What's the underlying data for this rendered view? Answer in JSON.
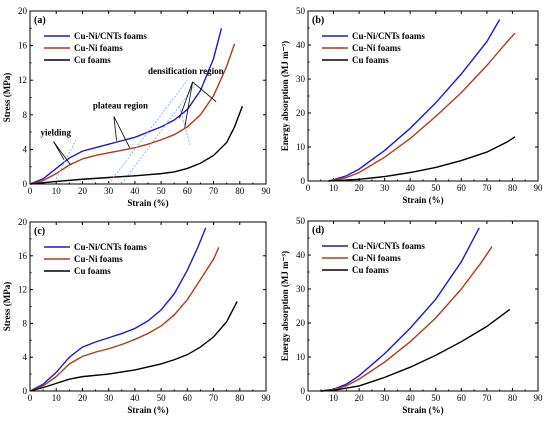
{
  "colors": {
    "cu_ni_cnts": "#1a1ad6",
    "cu_ni": "#b23a1a",
    "cu": "#000000",
    "guide": "#7fb2ff"
  },
  "chart_data": [
    {
      "type": "line",
      "panel_label": "(a)",
      "xlabel": "Strain (%)",
      "ylabel": "Stress (MPa)",
      "xlim": [
        0,
        90
      ],
      "ylim": [
        0,
        20
      ],
      "xticks": [
        0,
        10,
        20,
        30,
        40,
        50,
        60,
        70,
        80,
        90
      ],
      "yticks": [
        0,
        4,
        8,
        12,
        16,
        20
      ],
      "legend": "top-left",
      "series": [
        {
          "name": "Cu-Ni/CNTs foams",
          "color_key": "cu_ni_cnts",
          "points": [
            [
              0,
              0
            ],
            [
              5,
              0.6
            ],
            [
              10,
              1.8
            ],
            [
              15,
              3.0
            ],
            [
              20,
              3.8
            ],
            [
              25,
              4.2
            ],
            [
              30,
              4.6
            ],
            [
              35,
              5.0
            ],
            [
              40,
              5.4
            ],
            [
              45,
              6.0
            ],
            [
              50,
              6.6
            ],
            [
              55,
              7.4
            ],
            [
              60,
              8.6
            ],
            [
              65,
              10.8
            ],
            [
              70,
              14.5
            ],
            [
              73,
              18.0
            ]
          ]
        },
        {
          "name": "Cu-Ni foams",
          "color_key": "cu_ni",
          "points": [
            [
              0,
              0
            ],
            [
              5,
              0.4
            ],
            [
              10,
              1.2
            ],
            [
              15,
              2.2
            ],
            [
              20,
              2.9
            ],
            [
              25,
              3.3
            ],
            [
              30,
              3.6
            ],
            [
              35,
              3.9
            ],
            [
              40,
              4.2
            ],
            [
              45,
              4.6
            ],
            [
              50,
              5.1
            ],
            [
              55,
              5.7
            ],
            [
              60,
              6.6
            ],
            [
              65,
              8.0
            ],
            [
              70,
              10.2
            ],
            [
              75,
              13.6
            ],
            [
              78,
              16.2
            ]
          ]
        },
        {
          "name": "Cu foams",
          "color_key": "cu",
          "points": [
            [
              0,
              0
            ],
            [
              10,
              0.3
            ],
            [
              20,
              0.55
            ],
            [
              30,
              0.75
            ],
            [
              40,
              0.95
            ],
            [
              50,
              1.2
            ],
            [
              55,
              1.4
            ],
            [
              60,
              1.8
            ],
            [
              65,
              2.4
            ],
            [
              70,
              3.3
            ],
            [
              75,
              4.8
            ],
            [
              78,
              6.6
            ],
            [
              81,
              9.0
            ]
          ]
        }
      ],
      "annotations": [
        {
          "text": "yielding"
        },
        {
          "text": "plateau region"
        },
        {
          "text": "densification region"
        }
      ]
    },
    {
      "type": "line",
      "panel_label": "(b)",
      "xlabel": "Strain (%)",
      "ylabel": "Energy absorption (MJ m⁻³)",
      "xlim": [
        0,
        90
      ],
      "ylim": [
        0,
        50
      ],
      "xticks": [
        0,
        10,
        20,
        30,
        40,
        50,
        60,
        70,
        80,
        90
      ],
      "yticks": [
        0,
        10,
        20,
        30,
        40,
        50
      ],
      "legend": "top-left",
      "series": [
        {
          "name": "Cu-Ni/CNTs foams",
          "color_key": "cu_ni_cnts",
          "points": [
            [
              8,
              0
            ],
            [
              15,
              1.5
            ],
            [
              20,
              3.5
            ],
            [
              30,
              9
            ],
            [
              40,
              15.5
            ],
            [
              50,
              23
            ],
            [
              60,
              31.5
            ],
            [
              70,
              41
            ],
            [
              75,
              47.5
            ]
          ]
        },
        {
          "name": "Cu-Ni foams",
          "color_key": "cu_ni",
          "points": [
            [
              8,
              0
            ],
            [
              15,
              1
            ],
            [
              20,
              2.5
            ],
            [
              30,
              7
            ],
            [
              40,
              12.5
            ],
            [
              50,
              19
            ],
            [
              60,
              26
            ],
            [
              70,
              34
            ],
            [
              78,
              41
            ],
            [
              81,
              43.5
            ]
          ]
        },
        {
          "name": "Cu foams",
          "color_key": "cu",
          "points": [
            [
              8,
              0
            ],
            [
              20,
              0.5
            ],
            [
              30,
              1.3
            ],
            [
              40,
              2.5
            ],
            [
              50,
              4
            ],
            [
              60,
              6
            ],
            [
              70,
              8.5
            ],
            [
              78,
              11.5
            ],
            [
              81,
              13
            ]
          ]
        }
      ]
    },
    {
      "type": "line",
      "panel_label": "(c)",
      "xlabel": "Strain (%)",
      "ylabel": "Stress (MPa)",
      "xlim": [
        0,
        90
      ],
      "ylim": [
        0,
        20
      ],
      "xticks": [
        0,
        10,
        20,
        30,
        40,
        50,
        60,
        70,
        80,
        90
      ],
      "yticks": [
        0,
        4,
        8,
        12,
        16,
        20
      ],
      "legend": "top-left",
      "series": [
        {
          "name": "Cu-Ni/CNTs foams",
          "color_key": "cu_ni_cnts",
          "points": [
            [
              0,
              0
            ],
            [
              5,
              0.8
            ],
            [
              10,
              2.2
            ],
            [
              15,
              4.0
            ],
            [
              20,
              5.2
            ],
            [
              25,
              5.8
            ],
            [
              30,
              6.3
            ],
            [
              35,
              6.8
            ],
            [
              40,
              7.4
            ],
            [
              45,
              8.3
            ],
            [
              50,
              9.6
            ],
            [
              55,
              11.5
            ],
            [
              60,
              14.3
            ],
            [
              64,
              17.0
            ],
            [
              67,
              19.3
            ]
          ]
        },
        {
          "name": "Cu-Ni foams",
          "color_key": "cu_ni",
          "points": [
            [
              0,
              0
            ],
            [
              5,
              0.6
            ],
            [
              10,
              1.7
            ],
            [
              15,
              3.2
            ],
            [
              20,
              4.1
            ],
            [
              25,
              4.6
            ],
            [
              30,
              5.0
            ],
            [
              35,
              5.5
            ],
            [
              40,
              6.1
            ],
            [
              45,
              6.8
            ],
            [
              50,
              7.7
            ],
            [
              55,
              9.0
            ],
            [
              60,
              10.8
            ],
            [
              65,
              13.2
            ],
            [
              70,
              15.6
            ],
            [
              72,
              17.0
            ]
          ]
        },
        {
          "name": "Cu foams",
          "color_key": "cu",
          "points": [
            [
              0,
              0
            ],
            [
              5,
              0.4
            ],
            [
              10,
              0.9
            ],
            [
              15,
              1.4
            ],
            [
              20,
              1.7
            ],
            [
              30,
              2.0
            ],
            [
              40,
              2.5
            ],
            [
              50,
              3.2
            ],
            [
              55,
              3.7
            ],
            [
              60,
              4.3
            ],
            [
              65,
              5.2
            ],
            [
              70,
              6.4
            ],
            [
              75,
              8.2
            ],
            [
              79,
              10.6
            ]
          ]
        }
      ]
    },
    {
      "type": "line",
      "panel_label": "(d)",
      "xlabel": "Strain (%)",
      "ylabel": "Energy absorption (MJ m⁻³)",
      "xlim": [
        0,
        90
      ],
      "ylim": [
        0,
        50
      ],
      "xticks": [
        0,
        10,
        20,
        30,
        40,
        50,
        60,
        70,
        80,
        90
      ],
      "yticks": [
        0,
        10,
        20,
        30,
        40,
        50
      ],
      "legend": "top-left",
      "series": [
        {
          "name": "Cu-Ni/CNTs foams",
          "color_key": "cu_ni_cnts",
          "points": [
            [
              5,
              0
            ],
            [
              10,
              0.5
            ],
            [
              15,
              2
            ],
            [
              20,
              4.5
            ],
            [
              30,
              11
            ],
            [
              40,
              18.5
            ],
            [
              50,
              27
            ],
            [
              60,
              38
            ],
            [
              67,
              48
            ]
          ]
        },
        {
          "name": "Cu-Ni foams",
          "color_key": "cu_ni",
          "points": [
            [
              5,
              0
            ],
            [
              10,
              0.4
            ],
            [
              15,
              1.5
            ],
            [
              20,
              3.5
            ],
            [
              30,
              8.5
            ],
            [
              40,
              14.5
            ],
            [
              50,
              21.5
            ],
            [
              60,
              30
            ],
            [
              68,
              38
            ],
            [
              72,
              42.5
            ]
          ]
        },
        {
          "name": "Cu foams",
          "color_key": "cu",
          "points": [
            [
              5,
              0
            ],
            [
              10,
              0.2
            ],
            [
              20,
              1.5
            ],
            [
              30,
              4
            ],
            [
              40,
              7
            ],
            [
              50,
              10.5
            ],
            [
              60,
              14.5
            ],
            [
              70,
              19
            ],
            [
              79,
              24
            ]
          ]
        }
      ]
    }
  ]
}
